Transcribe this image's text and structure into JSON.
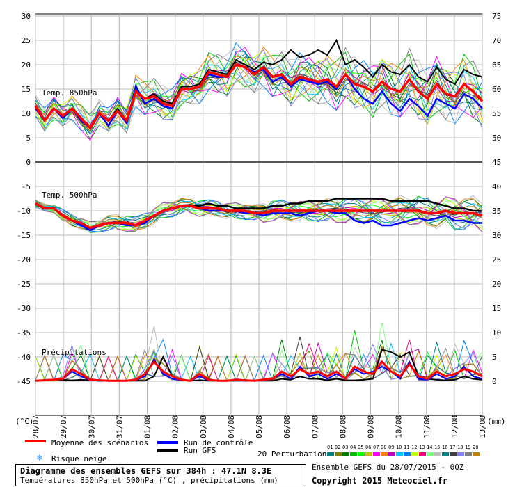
{
  "chart_data": {
    "type": "line",
    "title": "Diagramme des ensembles GEFS sur 384h : 47.1N 8.3E",
    "subtitle": "Températures 850hPa et 500hPa (°C) , précipitations (mm)",
    "left_unit": "(°C)",
    "right_unit": "(mm)",
    "left_ticks": [
      30,
      25,
      20,
      15,
      10,
      5,
      0,
      -5,
      -10,
      -15,
      -20,
      -25,
      -30,
      -35,
      -40,
      -45
    ],
    "right_ticks": [
      75,
      70,
      65,
      60,
      55,
      50,
      45,
      40,
      35,
      30,
      25,
      20,
      15,
      10,
      5,
      0
    ],
    "ylim": [
      -50,
      30
    ],
    "x_dates": [
      "28/07",
      "29/07",
      "30/07",
      "31/07",
      "01/08",
      "02/08",
      "03/08",
      "04/08",
      "05/08",
      "06/08",
      "07/08",
      "08/08",
      "09/08",
      "10/08",
      "11/08",
      "12/08",
      "13/08"
    ],
    "panel_labels": {
      "t850": "Temp. 850hPa",
      "t500": "Temp. 500hPa",
      "precip": "Précipitations"
    },
    "mean_850": [
      11.5,
      8.5,
      11,
      9.5,
      11,
      9,
      7,
      10,
      8.5,
      10.5,
      8.5,
      14.5,
      13,
      13.5,
      12,
      11.5,
      15,
      15,
      15.5,
      18.5,
      18,
      17.5,
      20,
      19.5,
      18,
      19.5,
      17.5,
      18,
      16,
      17.5,
      17,
      16.5,
      17,
      15.5,
      18,
      16,
      15.5,
      14.5,
      16.5,
      15,
      14.5,
      17,
      14.5,
      13,
      16,
      14,
      13.5,
      16,
      14.5,
      12.5
    ],
    "control_850": [
      11,
      8.5,
      11,
      9,
      11,
      8.5,
      7,
      10,
      7.5,
      10.5,
      8,
      15.5,
      12,
      13,
      11.5,
      11,
      15,
      15,
      15.5,
      18,
      17.5,
      17.5,
      20,
      19.5,
      18.5,
      19,
      16.5,
      17.5,
      15.5,
      17,
      16.5,
      16,
      16.5,
      15,
      18,
      15,
      13,
      12,
      14.5,
      12,
      10.5,
      13,
      11.5,
      9.5,
      13,
      12,
      11,
      14,
      13,
      11
    ],
    "gfs_850": [
      11.5,
      8.5,
      11,
      9.5,
      11,
      9,
      7,
      10,
      8.5,
      11,
      8.5,
      15,
      13,
      14,
      12.5,
      12,
      15.5,
      15.5,
      16,
      19,
      18.5,
      18,
      21,
      20,
      19,
      20.5,
      20,
      21,
      23,
      21.5,
      22,
      23,
      22,
      25,
      20,
      21,
      19.5,
      17.5,
      20,
      18.5,
      18,
      20,
      17.5,
      16.5,
      19.5,
      17,
      16,
      19,
      18,
      17.5
    ],
    "mean_500": [
      -8.5,
      -9.5,
      -9.5,
      -11,
      -12,
      -12.5,
      -13.5,
      -13,
      -12.5,
      -12.5,
      -12.5,
      -13,
      -12,
      -11,
      -10,
      -9.5,
      -9,
      -9,
      -9.5,
      -9.5,
      -9.5,
      -10,
      -10,
      -10,
      -10.5,
      -10.5,
      -10,
      -10,
      -10,
      -10,
      -10,
      -10,
      -10,
      -10,
      -10,
      -10,
      -10,
      -10,
      -10,
      -10,
      -10,
      -10,
      -10,
      -10.5,
      -10.5,
      -10,
      -10.5,
      -10.5,
      -10.5,
      -11
    ],
    "control_500": [
      -8.5,
      -9.5,
      -9.5,
      -11,
      -12,
      -13,
      -14,
      -13,
      -12.5,
      -12.5,
      -13,
      -13,
      -12.5,
      -11,
      -10,
      -9.5,
      -9,
      -9,
      -9.5,
      -10,
      -10,
      -10,
      -10,
      -10.5,
      -10.5,
      -11,
      -10.5,
      -10.5,
      -10.5,
      -11,
      -10.5,
      -10,
      -10,
      -10.5,
      -10.5,
      -12,
      -12.5,
      -12,
      -13,
      -13,
      -12.5,
      -12,
      -11.5,
      -12,
      -11.5,
      -11,
      -12,
      -12,
      -12.5,
      -12.5
    ],
    "gfs_500": [
      -8.5,
      -9.5,
      -9.5,
      -11,
      -12,
      -12.5,
      -13.5,
      -13,
      -12.5,
      -12.5,
      -12.5,
      -13,
      -12,
      -11,
      -10,
      -9.5,
      -9,
      -9,
      -9,
      -8.5,
      -9,
      -9,
      -9.5,
      -9.5,
      -9.5,
      -9.5,
      -9,
      -9,
      -8.5,
      -8.5,
      -8,
      -8,
      -8,
      -7.5,
      -7.5,
      -7.5,
      -7.5,
      -7.5,
      -7.5,
      -8,
      -8,
      -8,
      -8,
      -8,
      -8.5,
      -9,
      -9.5,
      -9.5,
      -10,
      -10
    ],
    "mean_precip": [
      0.1,
      0.2,
      0.3,
      0.5,
      2.5,
      1.5,
      0.3,
      0.2,
      0.1,
      0.1,
      0.1,
      0.3,
      1.5,
      4,
      2,
      1,
      0.3,
      0.1,
      1.5,
      0.3,
      0.1,
      0.1,
      0.3,
      0.2,
      0.1,
      0.3,
      0.5,
      2,
      1,
      2.5,
      1.5,
      2,
      1,
      2,
      0.5,
      3,
      2,
      1.5,
      4,
      2,
      1,
      3.5,
      1,
      0.5,
      2,
      1,
      1.5,
      2.5,
      2,
      1
    ],
    "control_precip": [
      0.1,
      0.2,
      0.3,
      0.4,
      2,
      1,
      0.2,
      0.1,
      0.1,
      0.1,
      0.1,
      0.2,
      1,
      4.5,
      1.5,
      0.5,
      0.2,
      0.1,
      1,
      0.2,
      0.1,
      0.1,
      0.2,
      0.1,
      0.1,
      0.2,
      0.4,
      1.5,
      0.5,
      3,
      1,
      1.5,
      0.5,
      1.5,
      0.5,
      2.5,
      1.5,
      2,
      3,
      2,
      0.5,
      4,
      0.5,
      0.3,
      1.5,
      0.5,
      1,
      3,
      1,
      0.5
    ],
    "gfs_precip": [
      0.1,
      0.2,
      0.3,
      0.3,
      0.2,
      0.3,
      0.2,
      0.1,
      0.1,
      0.1,
      0.1,
      0.1,
      0.1,
      1,
      5,
      1,
      0.2,
      0.1,
      0.2,
      0.1,
      0.1,
      0.1,
      0.1,
      0.1,
      0.1,
      0.1,
      0.1,
      0.5,
      0.3,
      1,
      0.5,
      0.5,
      0.2,
      0.5,
      0.2,
      0.2,
      0.3,
      0.5,
      6.5,
      6,
      5,
      6,
      1,
      0.5,
      0.3,
      0.2,
      0.3,
      1,
      0.5,
      0.3
    ],
    "spread_850": [
      2.5,
      3,
      3,
      3,
      3,
      3,
      3,
      3,
      3,
      3.5,
      3.5,
      4,
      4,
      4,
      4,
      4,
      4,
      4,
      4.5,
      4.5,
      4.5,
      5,
      5,
      5,
      5,
      5,
      5,
      5,
      5.5,
      5.5,
      5.5,
      6,
      6,
      6,
      6,
      6,
      6,
      6.5,
      6.5,
      6.5,
      6.5,
      7,
      7,
      7,
      7,
      7,
      7,
      7,
      7,
      7
    ],
    "spread_500": [
      1,
      1,
      1,
      1.5,
      1.5,
      1.5,
      1.5,
      1.5,
      2,
      2,
      2,
      2,
      2,
      2,
      2,
      2,
      2,
      2,
      2,
      2,
      2,
      2,
      2,
      2,
      2,
      2.5,
      2.5,
      2.5,
      2.5,
      2.5,
      2.5,
      2.5,
      3,
      3,
      3,
      3,
      3,
      3,
      3,
      3,
      3.5,
      3.5,
      3.5,
      3.5,
      3.5,
      3.5,
      4,
      4,
      4,
      4
    ],
    "perturbation_colors": [
      "#008080",
      "#808000",
      "#008000",
      "#00c000",
      "#00ff00",
      "#c0c000",
      "#ff00ff",
      "#ff8000",
      "#c000c0",
      "#00c0ff",
      "#0080ff",
      "#c0ff00",
      "#ff0080",
      "#80ff80",
      "#c0c0c0",
      "#008080",
      "#404040",
      "#8080ff",
      "#808080",
      "#c08000"
    ]
  },
  "legend": {
    "mean": "Moyenne des scénarios",
    "control": "Run de contrôle",
    "gfs": "Run GFS",
    "snow": "Risque neige",
    "perturbations": "20 Perturbations",
    "pert_numbers": [
      "01",
      "02",
      "03",
      "04",
      "05",
      "06",
      "07",
      "08",
      "09",
      "10",
      "11",
      "12",
      "13",
      "14",
      "15",
      "16",
      "17",
      "18",
      "19",
      "20"
    ],
    "mean_color": "#ff0000",
    "control_color": "#0000ff",
    "gfs_color": "#000000",
    "snow_color": "#3399ff"
  },
  "footer": {
    "title": "Diagramme des ensembles GEFS sur 384h : 47.1N 8.3E",
    "subtitle": "Températures 850hPa et 500hPa (°C) , précipitations (mm)",
    "run": "Ensemble GEFS du 28/07/2015 - 00Z",
    "copyright": "Copyright 2015 Meteociel.fr"
  }
}
